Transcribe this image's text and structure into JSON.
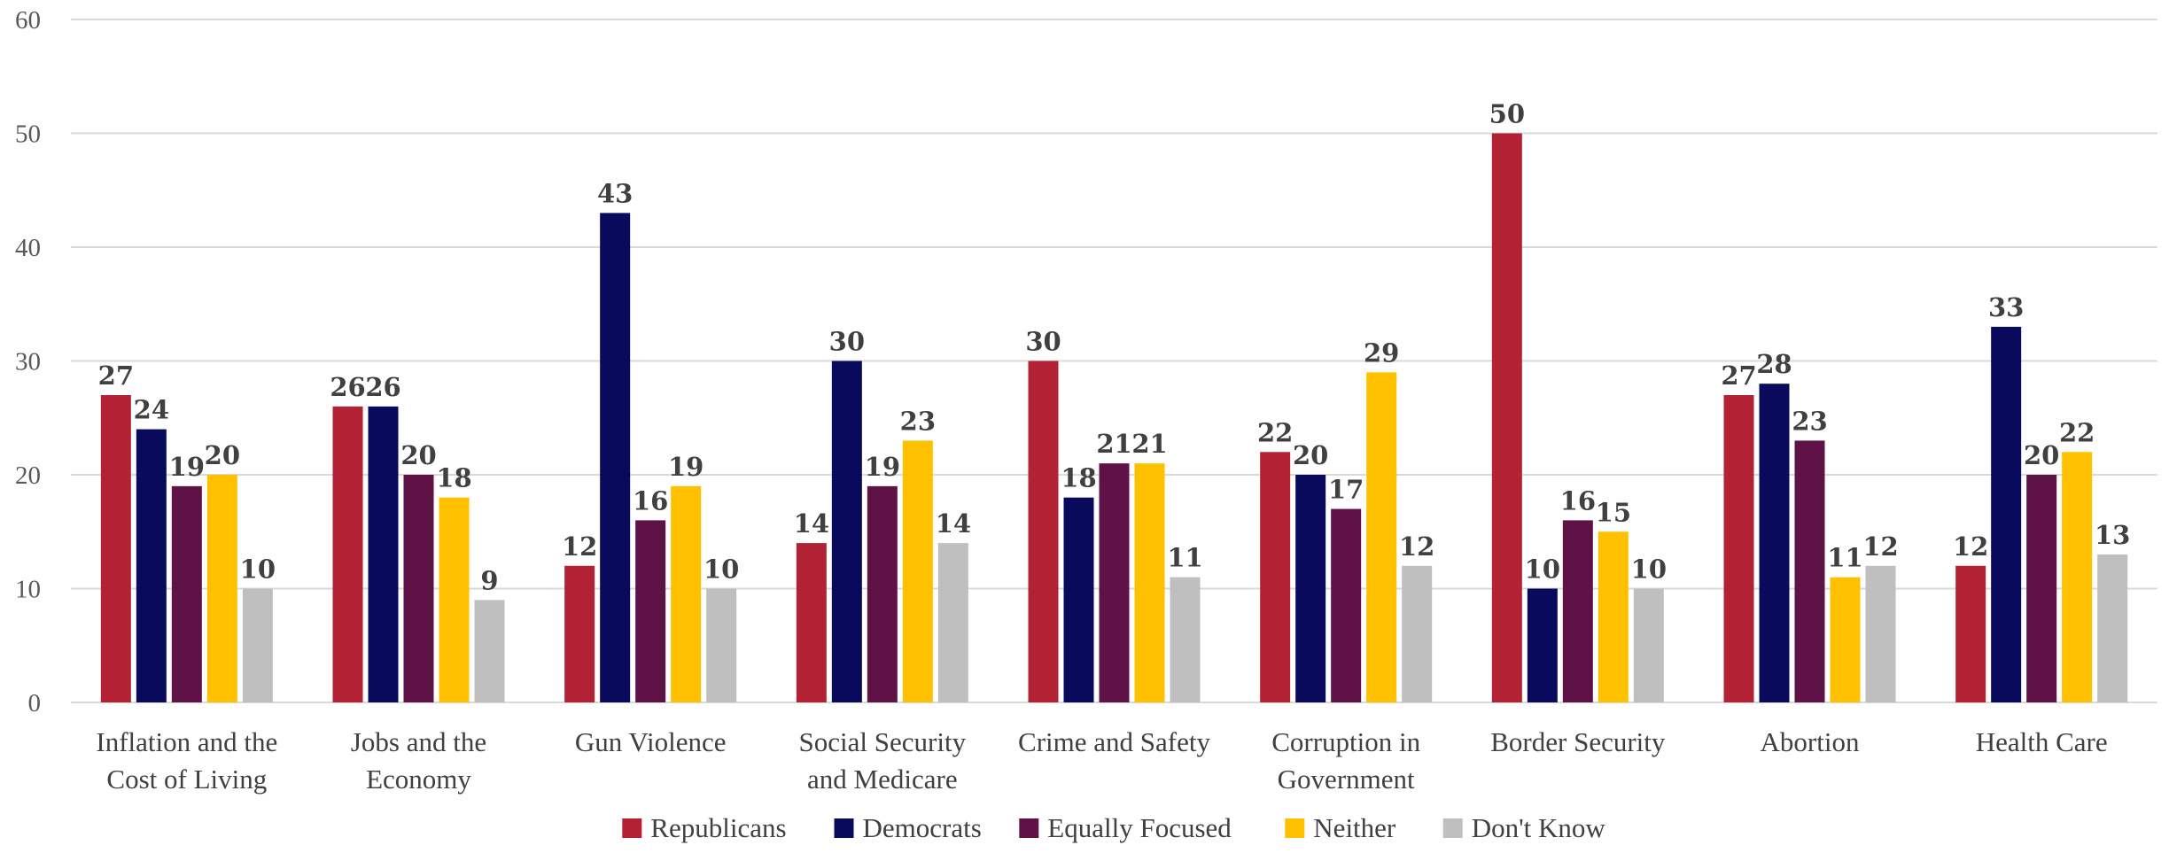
{
  "chart_data": {
    "type": "bar",
    "title": "",
    "xlabel": "",
    "ylabel": "",
    "ylim": [
      0,
      60
    ],
    "yticks": [
      0,
      10,
      20,
      30,
      40,
      50,
      60
    ],
    "grid": true,
    "legend_position": "bottom",
    "categories": [
      [
        "Inflation and the",
        "Cost of Living"
      ],
      [
        "Jobs and the",
        "Economy"
      ],
      [
        "Gun Violence"
      ],
      [
        "Social Security",
        "and Medicare"
      ],
      [
        "Crime and Safety"
      ],
      [
        "Corruption in",
        "Government"
      ],
      [
        "Border Security"
      ],
      [
        "Abortion"
      ],
      [
        "Health Care"
      ]
    ],
    "series": [
      {
        "name": "Republicans",
        "color": "#b22234",
        "values": [
          27,
          26,
          12,
          14,
          30,
          22,
          50,
          27,
          12
        ]
      },
      {
        "name": "Democrats",
        "color": "#0a0a5c",
        "values": [
          24,
          26,
          43,
          30,
          18,
          20,
          10,
          28,
          33
        ]
      },
      {
        "name": "Equally Focused",
        "color": "#5e1246",
        "values": [
          19,
          20,
          16,
          19,
          21,
          17,
          16,
          23,
          20
        ]
      },
      {
        "name": "Neither",
        "color": "#ffc000",
        "values": [
          20,
          18,
          19,
          23,
          21,
          29,
          15,
          11,
          22
        ]
      },
      {
        "name": "Don't Know",
        "color": "#bfbfbf",
        "values": [
          10,
          9,
          10,
          14,
          11,
          12,
          10,
          12,
          13
        ]
      }
    ]
  }
}
